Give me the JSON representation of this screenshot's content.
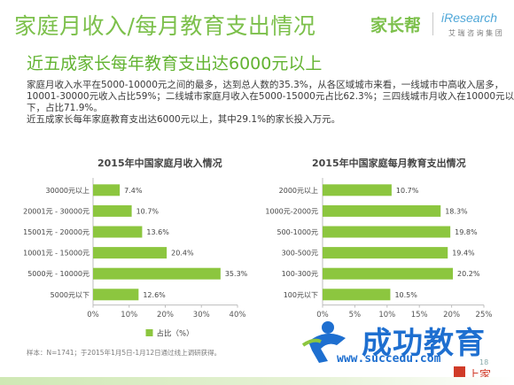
{
  "slide": {
    "title": "家庭月收入/每月教育支出情况",
    "subtitle": "近五成家长每年教育支出达6000元以上",
    "paragraph_lines": [
      "家庭月收入水平在5000-10000元之间的最多，达到总人数的35.3%，从各区域城市来看，一线城市中高收入居多，",
      "10001-30000元收入占比59%；二线城市家庭月收入在5000-15000元占比62.3%；三四线城市月收入在10000元以",
      "下，占比71.9%。",
      "近五成家长每年家庭教育支出达6000元以上，其中29.1%的家长投入万元。"
    ],
    "footnote": "样本：N=1741；于2015年1月5日-1月12日通过线上调研获得。",
    "logos": {
      "jiazhangbang": "家长帮",
      "iresearch": "iResearch",
      "iresearch_sub": "艾 瑞 咨 询 集 团"
    },
    "watermark": {
      "main": "成功教育",
      "url": "www.succedu.com",
      "corner": "上家"
    },
    "page_number": "18"
  },
  "colors": {
    "bar": "#8cc63f",
    "title": "#7cc04b",
    "axis": "#bdbdbd"
  },
  "chart_data": [
    {
      "type": "bar",
      "orientation": "horizontal",
      "title": "2015年中国家庭月收入情况",
      "categories": [
        "30000元以上",
        "20001元 - 30000元",
        "15001元 - 20000元",
        "10001元 - 15000元",
        "5000元 - 10000元",
        "5000元以下"
      ],
      "series": [
        {
          "name": "占比（%）",
          "values": [
            7.4,
            10.7,
            13.6,
            20.4,
            35.3,
            12.6
          ]
        }
      ],
      "value_labels": [
        "7.4%",
        "10.7%",
        "13.6%",
        "20.4%",
        "35.3%",
        "12.6%"
      ],
      "xlim": [
        0,
        40
      ],
      "xticks": [
        "0%",
        "10%",
        "20%",
        "30%",
        "40%"
      ],
      "legend": "bottom-center"
    },
    {
      "type": "bar",
      "orientation": "horizontal",
      "title": "2015年中国家庭每月教育支出情况",
      "categories": [
        "2000元以上",
        "1000元-2000元",
        "500-1000元",
        "300-500元",
        "100-300元",
        "100元以下"
      ],
      "values": [
        10.7,
        18.3,
        19.8,
        19.4,
        20.2,
        10.5
      ],
      "value_labels": [
        "10.7%",
        "18.3%",
        "19.8%",
        "19.4%",
        "20.2%",
        "10.5%"
      ],
      "xlim": [
        0,
        25
      ],
      "xticks": [
        "0%",
        "5%",
        "10%",
        "15%",
        "20%",
        "25%"
      ]
    }
  ]
}
